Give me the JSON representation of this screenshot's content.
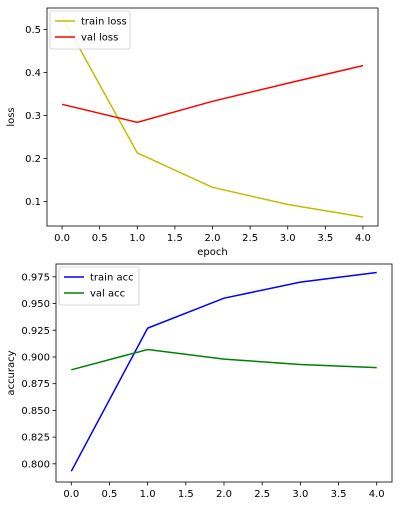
{
  "chart_data": [
    {
      "type": "line",
      "x": [
        0,
        1,
        2,
        3,
        4
      ],
      "series": [
        {
          "name": "train loss",
          "values": [
            0.53,
            0.213,
            0.133,
            0.093,
            0.064
          ],
          "color": "#bfbf00"
        },
        {
          "name": "val loss",
          "values": [
            0.326,
            0.284,
            0.333,
            0.375,
            0.416
          ],
          "color": "#ff0000"
        }
      ],
      "xlabel": "epoch",
      "ylabel": "loss",
      "xlim": [
        -0.2,
        4.2
      ],
      "ylim": [
        0.043,
        0.55
      ],
      "xticks": [
        0.0,
        0.5,
        1.0,
        1.5,
        2.0,
        2.5,
        3.0,
        3.5,
        4.0
      ],
      "xtick_labels": [
        "0.0",
        "0.5",
        "1.0",
        "1.5",
        "2.0",
        "2.5",
        "3.0",
        "3.5",
        "4.0"
      ],
      "yticks": [
        0.1,
        0.2,
        0.3,
        0.4,
        0.5
      ],
      "ytick_labels": [
        "0.1",
        "0.2",
        "0.3",
        "0.4",
        "0.5"
      ],
      "grid": false,
      "legend_position": "top-left"
    },
    {
      "type": "line",
      "x": [
        0,
        1,
        2,
        3,
        4
      ],
      "series": [
        {
          "name": "train acc",
          "values": [
            0.793,
            0.927,
            0.955,
            0.97,
            0.979
          ],
          "color": "#0000ff"
        },
        {
          "name": "val acc",
          "values": [
            0.888,
            0.907,
            0.898,
            0.893,
            0.89
          ],
          "color": "#008000"
        }
      ],
      "xlabel": "",
      "ylabel": "accuracy",
      "xlim": [
        -0.2,
        4.2
      ],
      "ylim": [
        0.783,
        0.987
      ],
      "xticks": [
        0.0,
        0.5,
        1.0,
        1.5,
        2.0,
        2.5,
        3.0,
        3.5,
        4.0
      ],
      "xtick_labels": [
        "0.0",
        "0.5",
        "1.0",
        "1.5",
        "2.0",
        "2.5",
        "3.0",
        "3.5",
        "4.0"
      ],
      "yticks": [
        0.8,
        0.825,
        0.85,
        0.875,
        0.9,
        0.925,
        0.95,
        0.975
      ],
      "ytick_labels": [
        "0.800",
        "0.825",
        "0.850",
        "0.875",
        "0.900",
        "0.925",
        "0.950",
        "0.975"
      ],
      "grid": false,
      "legend_position": "top-left"
    }
  ]
}
